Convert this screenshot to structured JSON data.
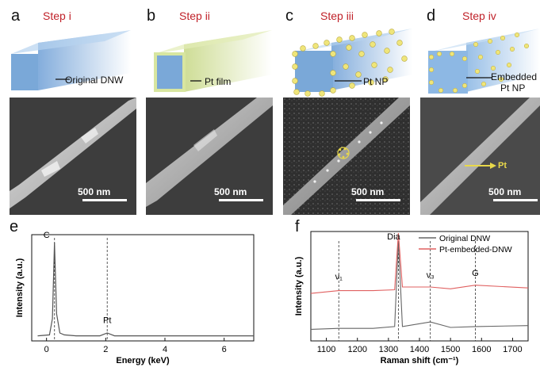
{
  "panels": {
    "a": {
      "letter": "a",
      "step": "Step i",
      "label": "Original DNW",
      "scale": "500 nm"
    },
    "b": {
      "letter": "b",
      "step": "Step ii",
      "label": "Pt film",
      "scale": "500 nm"
    },
    "c": {
      "letter": "c",
      "step": "Step iii",
      "label": "Pt NP",
      "scale": "500 nm"
    },
    "d": {
      "letter": "d",
      "step": "Step iv",
      "label_line1": "Embedded",
      "label_line2": "Pt NP",
      "scale": "500 nm",
      "pt_arrow_label": "Pt"
    },
    "e": {
      "letter": "e"
    },
    "f": {
      "letter": "f"
    }
  },
  "colors": {
    "step_red": "#c0222a",
    "wire_blue": "#7aa8d8",
    "pt_film": "#d8e6a0",
    "np_yellow": "#efe57a",
    "raman_red": "#e06060",
    "raman_gray": "#666666"
  },
  "chart_data": [
    {
      "type": "line",
      "panel": "e",
      "xlabel": "Energy (keV)",
      "ylabel": "Intensity (a.u.)",
      "xlim": [
        -0.5,
        7
      ],
      "xticks": [
        "0",
        "2",
        "4",
        "6"
      ],
      "peaks": [
        {
          "label": "C",
          "x": 0.27
        },
        {
          "label": "Pt",
          "x": 2.05
        }
      ],
      "series": [
        {
          "x": [
            -0.3,
            0.1,
            0.2,
            0.27,
            0.34,
            0.45,
            0.6,
            1.0,
            1.8,
            2.05,
            2.3,
            3.0,
            5.0,
            7.0
          ],
          "y": [
            0.02,
            0.03,
            0.2,
            1.0,
            0.25,
            0.05,
            0.03,
            0.02,
            0.02,
            0.05,
            0.02,
            0.02,
            0.02,
            0.02
          ]
        }
      ],
      "dashed_lines_x": [
        0.27,
        2.05
      ]
    },
    {
      "type": "line",
      "panel": "f",
      "xlabel": "Raman shift (cm⁻¹)",
      "ylabel": "Intensity (a.u.)",
      "xlim": [
        1050,
        1750
      ],
      "xticks": [
        "1100",
        "1200",
        "1300",
        "1400",
        "1500",
        "1600",
        "1700"
      ],
      "peak_labels": [
        {
          "label": "Dia",
          "x": 1332
        },
        {
          "label": "ν₁",
          "x": 1140
        },
        {
          "label": "ν₃",
          "x": 1435
        },
        {
          "label": "G",
          "x": 1580
        }
      ],
      "dashed_lines_x": [
        1140,
        1332,
        1435,
        1580
      ],
      "legend": [
        "Original DNW",
        "Pt-embedded-DNW"
      ],
      "series": [
        {
          "name": "Original DNW",
          "x": [
            1050,
            1140,
            1250,
            1320,
            1332,
            1345,
            1435,
            1500,
            1580,
            1750
          ],
          "y": [
            0.04,
            0.05,
            0.05,
            0.07,
            1.0,
            0.07,
            0.12,
            0.06,
            0.07,
            0.08
          ]
        },
        {
          "name": "Pt-embedded-DNW",
          "x": [
            1050,
            1140,
            1250,
            1320,
            1332,
            1345,
            1435,
            1500,
            1580,
            1750
          ],
          "y": [
            0.43,
            0.46,
            0.46,
            0.47,
            1.3,
            0.5,
            0.5,
            0.48,
            0.52,
            0.49
          ]
        }
      ]
    }
  ]
}
